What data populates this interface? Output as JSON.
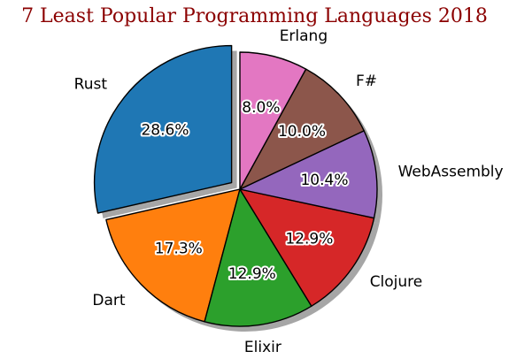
{
  "chart_data": {
    "type": "pie",
    "title": "7 Least Popular Programming Languages 2018",
    "categories": [
      "Rust",
      "Dart",
      "Elixir",
      "Clojure",
      "WebAssembly",
      "F#",
      "Erlang"
    ],
    "values": [
      28.6,
      17.3,
      12.9,
      12.9,
      10.4,
      10.0,
      8.0
    ],
    "value_labels": [
      "28.6%",
      "17.3%",
      "12.9%",
      "12.9%",
      "10.4%",
      "10.0%",
      "8.0%"
    ],
    "colors": [
      "#1f77b4",
      "#ff7f0e",
      "#2ca02c",
      "#d62728",
      "#9467bd",
      "#8c564b",
      "#e377c2"
    ],
    "exploded": [
      "Rust"
    ],
    "shadow": true
  }
}
